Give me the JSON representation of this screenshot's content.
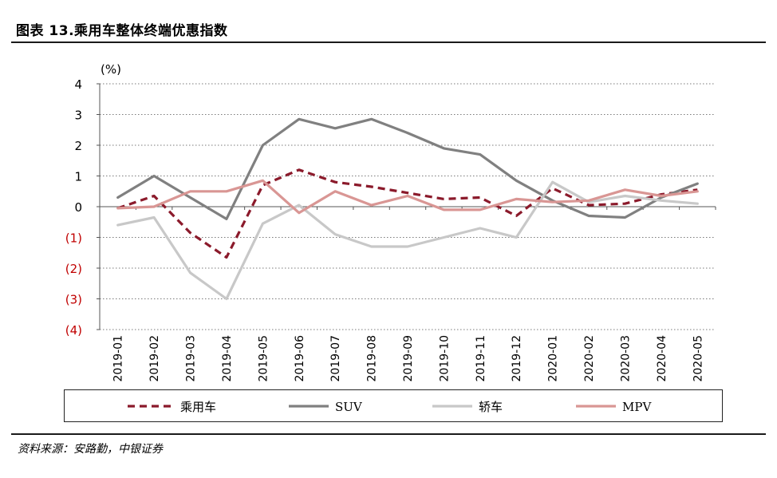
{
  "title": "图表 13.乘用车整体终端优惠指数",
  "source": "资料来源：安路勤，中银证券",
  "chart_data": {
    "type": "line",
    "ylabel": "(%)",
    "ylim": [
      -4,
      4
    ],
    "yticks": [
      4,
      3,
      2,
      1,
      0,
      -1,
      -2,
      -3,
      -4
    ],
    "ytick_labels": [
      "4",
      "3",
      "2",
      "1",
      "0",
      "(1)",
      "(2)",
      "(3)",
      "(4)"
    ],
    "negative_tick_color": "#C00000",
    "grid": "horizontal dotted",
    "legend": "bottom",
    "categories": [
      "2019-01",
      "2019-02",
      "2019-03",
      "2019-04",
      "2019-05",
      "2019-06",
      "2019-07",
      "2019-08",
      "2019-09",
      "2019-10",
      "2019-11",
      "2019-12",
      "2020-01",
      "2020-02",
      "2020-03",
      "2020-04",
      "2020-05"
    ],
    "series": [
      {
        "name": "乘用车",
        "color": "#8B1A2B",
        "style": "dashed",
        "values": [
          -0.05,
          0.35,
          -0.85,
          -1.65,
          0.7,
          1.2,
          0.8,
          0.65,
          0.45,
          0.25,
          0.3,
          -0.3,
          0.6,
          0.05,
          0.1,
          0.4,
          0.55
        ]
      },
      {
        "name": "SUV",
        "color": "#808080",
        "style": "solid",
        "values": [
          0.3,
          1.0,
          0.3,
          -0.4,
          2.0,
          2.85,
          2.55,
          2.85,
          2.4,
          1.9,
          1.7,
          0.85,
          0.2,
          -0.3,
          -0.35,
          0.3,
          0.75
        ]
      },
      {
        "name": "轿车",
        "color": "#C8C8C8",
        "style": "solid",
        "values": [
          -0.6,
          -0.35,
          -2.15,
          -3.0,
          -0.55,
          0.05,
          -0.9,
          -1.3,
          -1.3,
          -1.0,
          -0.7,
          -1.0,
          0.8,
          0.15,
          0.35,
          0.2,
          0.1
        ]
      },
      {
        "name": "MPV",
        "color": "#D99694",
        "style": "solid",
        "values": [
          -0.05,
          0.0,
          0.5,
          0.5,
          0.85,
          -0.2,
          0.5,
          0.05,
          0.35,
          -0.1,
          -0.1,
          0.25,
          0.15,
          0.2,
          0.55,
          0.35,
          0.5
        ]
      }
    ]
  }
}
